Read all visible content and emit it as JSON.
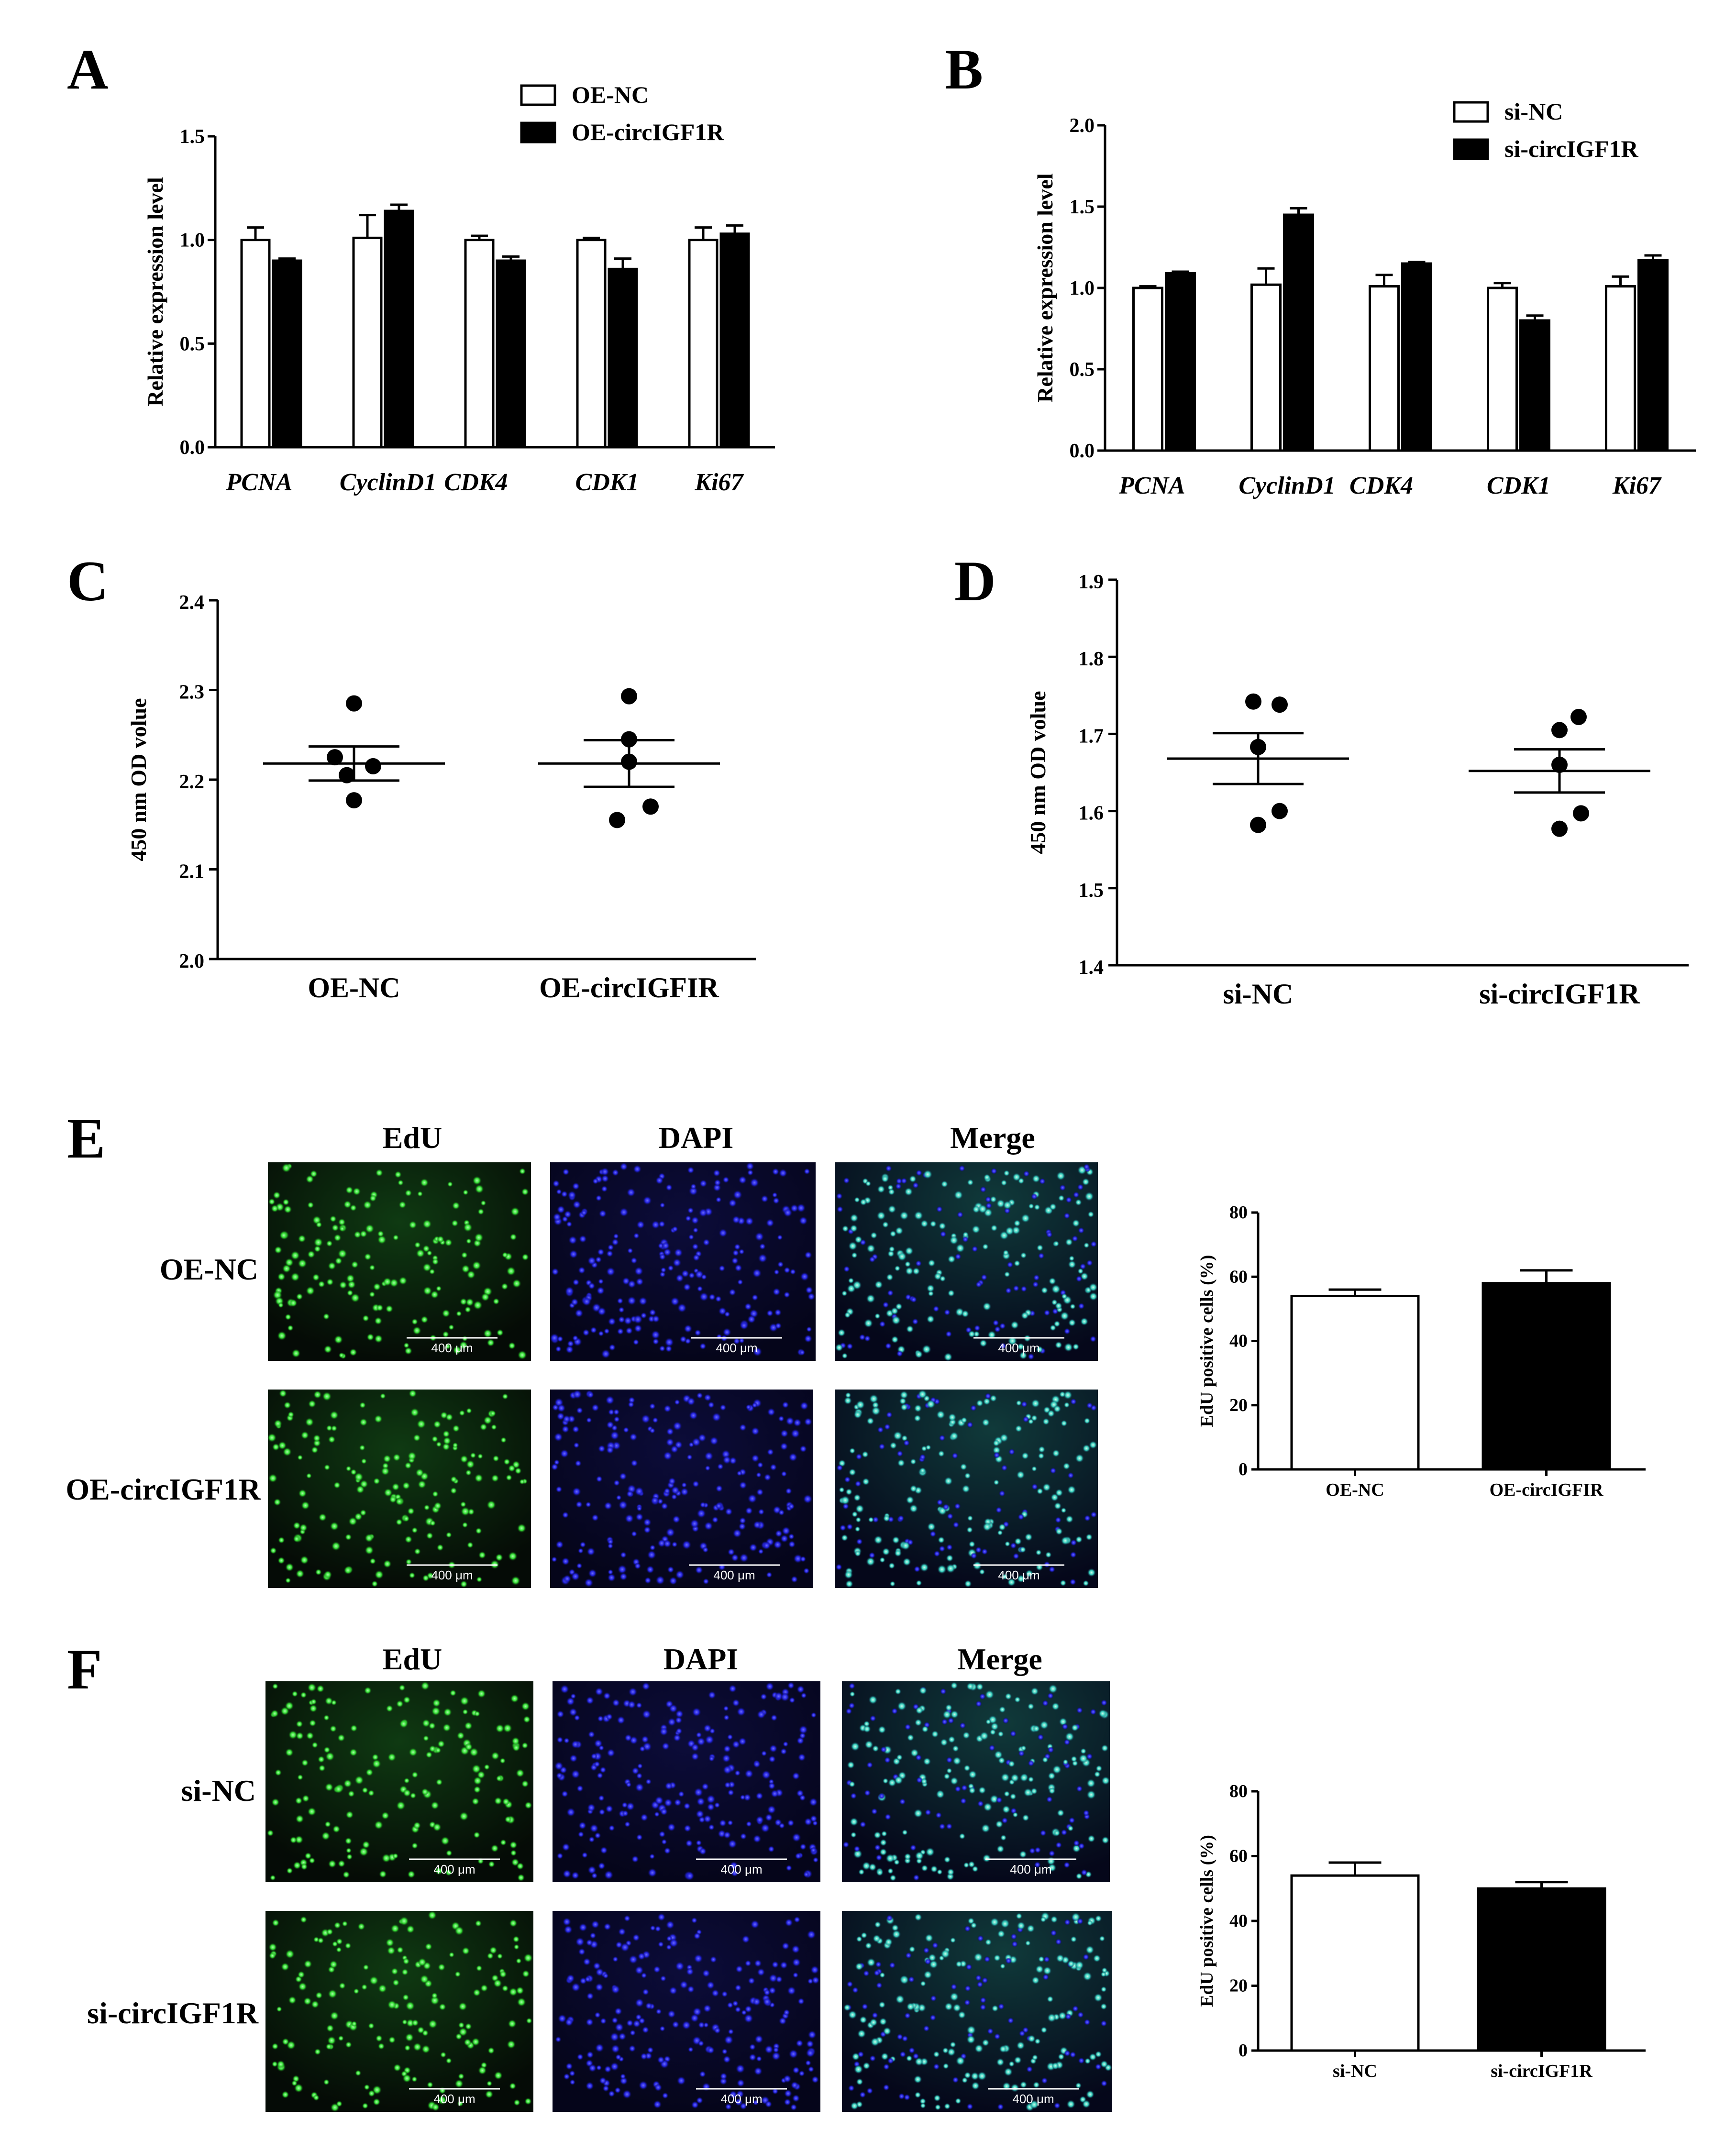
{
  "panels": {
    "A": {
      "letter": "A",
      "chart_data": {
        "type": "bar",
        "categories": [
          "PCNA",
          "CyclinD1",
          "CDK4",
          "CDK1",
          "Ki67"
        ],
        "series": [
          {
            "name": "OE-NC",
            "values": [
              1.0,
              1.01,
              1.0,
              1.0,
              1.0
            ],
            "errors": [
              0.06,
              0.11,
              0.02,
              0.01,
              0.06
            ],
            "fill": "#ffffff"
          },
          {
            "name": "OE-circIGF1R",
            "values": [
              0.9,
              1.14,
              0.9,
              0.86,
              1.03
            ],
            "errors": [
              0.01,
              0.03,
              0.02,
              0.05,
              0.04
            ],
            "fill": "#000000"
          }
        ],
        "ylabel": "Relative expression level",
        "ylim": [
          0,
          1.5
        ],
        "yticks": [
          "0.0",
          "0.5",
          "1.0",
          "1.5"
        ],
        "legend": "top-right"
      }
    },
    "B": {
      "letter": "B",
      "chart_data": {
        "type": "bar",
        "categories": [
          "PCNA",
          "CyclinD1",
          "CDK4",
          "CDK1",
          "Ki67"
        ],
        "series": [
          {
            "name": "si-NC",
            "values": [
              1.0,
              1.02,
              1.01,
              1.0,
              1.01
            ],
            "errors": [
              0.01,
              0.1,
              0.07,
              0.03,
              0.06
            ],
            "fill": "#ffffff"
          },
          {
            "name": "si-circIGF1R",
            "values": [
              1.09,
              1.45,
              1.15,
              0.8,
              1.17
            ],
            "errors": [
              0.01,
              0.04,
              0.01,
              0.03,
              0.03
            ],
            "fill": "#000000"
          }
        ],
        "ylabel": "Relative expression level",
        "ylim": [
          0,
          2.0
        ],
        "yticks": [
          "0.0",
          "0.5",
          "1.0",
          "1.5",
          "2.0"
        ],
        "legend": "top-right"
      }
    },
    "C": {
      "letter": "C",
      "chart_data": {
        "type": "scatter",
        "categories": [
          "OE-NC",
          "OE-circIGFIR"
        ],
        "groups": [
          {
            "name": "OE-NC",
            "points": [
              2.285,
              2.225,
              2.215,
              2.205,
              2.177
            ],
            "mean": 2.218,
            "sem": 0.019
          },
          {
            "name": "OE-circIGFIR",
            "points": [
              2.293,
              2.245,
              2.22,
              2.17,
              2.155
            ],
            "mean": 2.218,
            "sem": 0.026
          }
        ],
        "ylabel": "450 nm OD  volue",
        "ylim": [
          2.0,
          2.4
        ],
        "yticks": [
          "2.0",
          "2.1",
          "2.2",
          "2.3",
          "2.4"
        ]
      }
    },
    "D": {
      "letter": "D",
      "chart_data": {
        "type": "scatter",
        "categories": [
          "si-NC",
          "si-circIGF1R"
        ],
        "groups": [
          {
            "name": "si-NC",
            "points": [
              1.742,
              1.738,
              1.683,
              1.6,
              1.582
            ],
            "mean": 1.668,
            "sem": 0.033
          },
          {
            "name": "si-circIGF1R",
            "points": [
              1.722,
              1.705,
              1.66,
              1.597,
              1.577
            ],
            "mean": 1.652,
            "sem": 0.028
          }
        ],
        "ylabel": "450 nm OD  volue",
        "ylim": [
          1.4,
          1.9
        ],
        "yticks": [
          "1.4",
          "1.5",
          "1.6",
          "1.7",
          "1.8",
          "1.9"
        ]
      }
    },
    "E": {
      "letter": "E",
      "columns": [
        "EdU",
        "DAPI",
        "Merge"
      ],
      "rows": [
        "OE-NC",
        "OE-circIGF1R"
      ],
      "scale_bar": "400 μm",
      "chart_data": {
        "type": "bar",
        "categories": [
          "OE-NC",
          "OE-circIGFIR"
        ],
        "values": [
          54,
          58
        ],
        "errors": [
          2,
          4
        ],
        "fills": [
          "#ffffff",
          "#000000"
        ],
        "ylabel": "EdU positive cells (%)",
        "ylim": [
          0,
          80
        ],
        "yticks": [
          "0",
          "20",
          "40",
          "60",
          "80"
        ]
      }
    },
    "F": {
      "letter": "F",
      "columns": [
        "EdU",
        "DAPI",
        "Merge"
      ],
      "rows": [
        "si-NC",
        "si-circIGF1R"
      ],
      "scale_bar": "400 μm",
      "chart_data": {
        "type": "bar",
        "categories": [
          "si-NC",
          "si-circIGF1R"
        ],
        "values": [
          54,
          50
        ],
        "errors": [
          4,
          2
        ],
        "fills": [
          "#ffffff",
          "#000000"
        ],
        "ylabel": "EdU positive cells (%)",
        "ylim": [
          0,
          80
        ],
        "yticks": [
          "0",
          "20",
          "40",
          "60",
          "80"
        ]
      }
    }
  }
}
